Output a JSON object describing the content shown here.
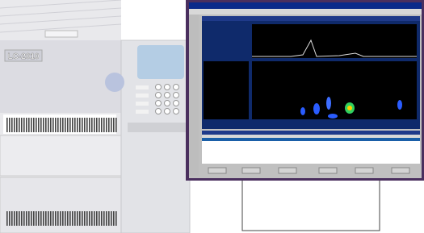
{
  "instrument": {
    "label": "LC-2010"
  }
}
